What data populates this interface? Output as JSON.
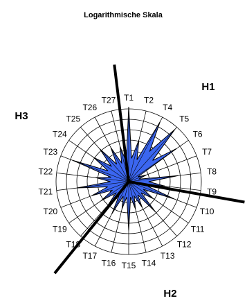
{
  "chart_data": {
    "type": "radar",
    "title": "Logarithmische Skala",
    "scale": "log",
    "rings": 7,
    "grid": true,
    "series_color": "#3b66f0",
    "categories": [
      "T1",
      "T2",
      "T4",
      "T5",
      "T6",
      "T7",
      "T8",
      "T9",
      "T10",
      "T11",
      "T12",
      "T13",
      "T14",
      "T15",
      "T16",
      "T17",
      "T18",
      "T19",
      "T20",
      "T21",
      "T22",
      "T23",
      "T24",
      "T25",
      "T26",
      "T27"
    ],
    "values": [
      7.2,
      4.1,
      6.5,
      6.7,
      5.6,
      1.8,
      4.8,
      3.5,
      4.7,
      2.9,
      3.9,
      2.8,
      2.7,
      4.7,
      2.7,
      3.5,
      3.0,
      3.2,
      3.8,
      5.0,
      3.2,
      5.8,
      4.1,
      4.2,
      3.7,
      3.5
    ],
    "sectors": [
      {
        "label": "H1",
        "angle_deg": -8
      },
      {
        "label": "H2",
        "angle_deg": 104
      },
      {
        "label": "H3",
        "angle_deg": 216
      }
    ]
  }
}
